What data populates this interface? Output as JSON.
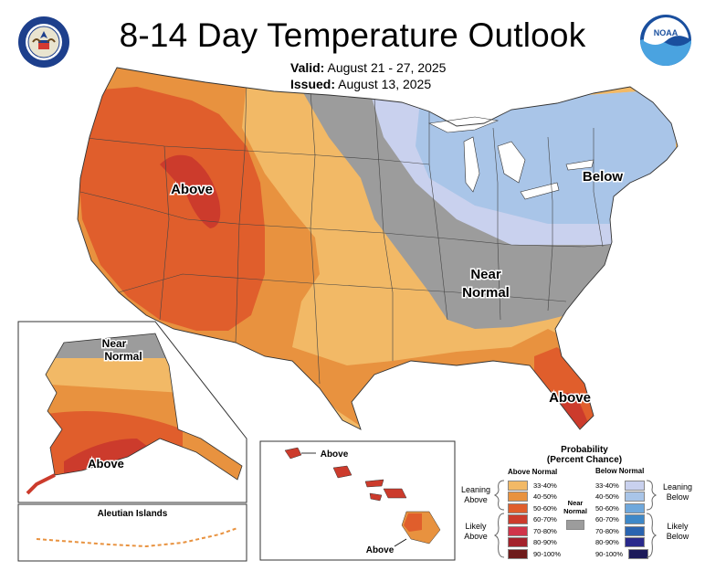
{
  "header": {
    "title": "8-14 Day Temperature Outlook",
    "valid_label": "Valid:",
    "valid_value": "August 21 - 27, 2025",
    "issued_label": "Issued:",
    "issued_value": "August 13, 2025"
  },
  "logos": {
    "left": "department-of-commerce-seal",
    "right": "noaa-logo",
    "noaa_text": "NOAA"
  },
  "map_labels": {
    "west_above": "Above",
    "east_below": "Below",
    "central_near": "Near",
    "central_normal": "Normal",
    "florida_above": "Above",
    "alaska_near": "Near",
    "alaska_normal": "Normal",
    "alaska_above": "Above",
    "aleutian": "Aleutian Islands",
    "hawaii_above_top": "Above",
    "hawaii_above_bottom": "Above"
  },
  "legend": {
    "title_line1": "Probability",
    "title_line2": "(Percent Chance)",
    "above_header": "Above Normal",
    "below_header": "Below Normal",
    "near_normal_label_1": "Near",
    "near_normal_label_2": "Normal",
    "leaning_above_1": "Leaning",
    "leaning_above_2": "Above",
    "likely_above_1": "Likely",
    "likely_above_2": "Above",
    "leaning_below_1": "Leaning",
    "leaning_below_2": "Below",
    "likely_below_1": "Likely",
    "likely_below_2": "Below",
    "above_rows": [
      {
        "label": "33-40%",
        "color": "#f2b966"
      },
      {
        "label": "40-50%",
        "color": "#e8923f"
      },
      {
        "label": "50-60%",
        "color": "#e05e2c"
      },
      {
        "label": "60-70%",
        "color": "#cc3b2c"
      },
      {
        "label": "70-80%",
        "color": "#d0344a"
      },
      {
        "label": "80-90%",
        "color": "#a3222c"
      },
      {
        "label": "90-100%",
        "color": "#6e1a1a"
      }
    ],
    "below_rows": [
      {
        "label": "33-40%",
        "color": "#c9d1ee"
      },
      {
        "label": "40-50%",
        "color": "#a9c5e8"
      },
      {
        "label": "50-60%",
        "color": "#6fa8dc"
      },
      {
        "label": "60-70%",
        "color": "#3e88c8"
      },
      {
        "label": "70-80%",
        "color": "#2a64b0"
      },
      {
        "label": "80-90%",
        "color": "#2a2a8c"
      },
      {
        "label": "90-100%",
        "color": "#1c1a5a"
      }
    ],
    "near_color": "#9c9c9c"
  }
}
